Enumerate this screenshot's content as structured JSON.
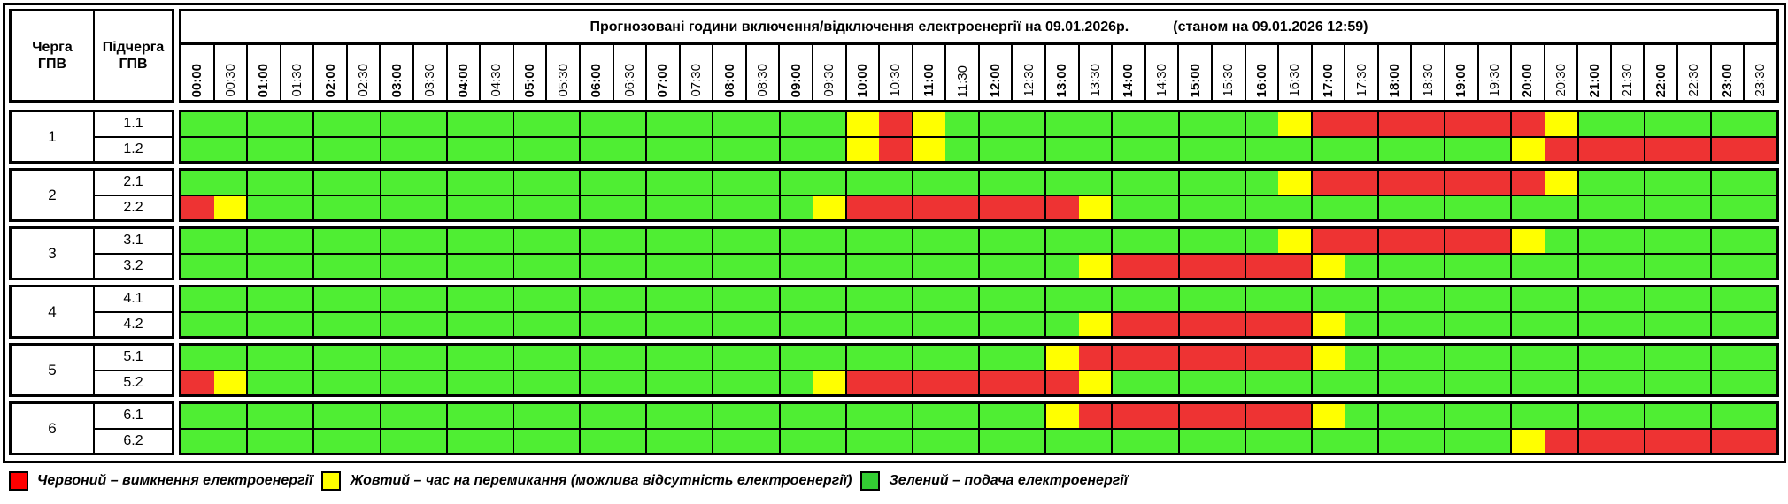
{
  "header": {
    "queue_label": "Черга\nГПВ",
    "subqueue_label": "Підчерга\nГПВ",
    "title": "Прогнозовані години включення/відключення електроенергії на 09.01.2026р.",
    "status": "(станом на 09.01.2026 12:59)"
  },
  "times": [
    "00:00",
    "00:30",
    "01:00",
    "01:30",
    "02:00",
    "02:30",
    "03:00",
    "03:30",
    "04:00",
    "04:30",
    "05:00",
    "05:30",
    "06:00",
    "06:30",
    "07:00",
    "07:30",
    "08:00",
    "08:30",
    "09:00",
    "09:30",
    "10:00",
    "10:30",
    "11:00",
    "11:30",
    "12:00",
    "12:30",
    "13:00",
    "13:30",
    "14:00",
    "14:30",
    "15:00",
    "15:30",
    "16:00",
    "16:30",
    "17:00",
    "17:30",
    "18:00",
    "18:30",
    "19:00",
    "19:30",
    "20:00",
    "20:30",
    "21:00",
    "21:30",
    "22:00",
    "22:30",
    "23:00",
    "23:30"
  ],
  "colors": {
    "R": "#ee3333",
    "Y": "#ffff00",
    "G": "#4fee33",
    "legend_green": "#33cc33",
    "legend_red": "#ff0000"
  },
  "groups": [
    {
      "queue": "1",
      "subs": [
        {
          "id": "1.1",
          "slots": "GG GG GG GG GG GG GG GG GG GG YR YG GG GG GG GG GY RR RR RR RY GG GG GG"
        },
        {
          "id": "1.2",
          "slots": "GG GG GG GG GG GG GG GG GG GG YR YG GG GG GG GG GG GG GG GG YR RR RR RR"
        }
      ]
    },
    {
      "queue": "2",
      "subs": [
        {
          "id": "2.1",
          "slots": "GG GG GG GG GG GG GG GG GG GG GG GG GG GG GG GG GY RR RR RR RY GG GG GG"
        },
        {
          "id": "2.2",
          "slots": "RY GG GG GG GG GG GG GG GG GY RR RR RR RY GG GG GG GG GG GG GG GG GG GG"
        }
      ]
    },
    {
      "queue": "3",
      "subs": [
        {
          "id": "3.1",
          "slots": "GG GG GG GG GG GG GG GG GG GG GG GG GG GG GG GG GY RR RR RR YG GG GG GG"
        },
        {
          "id": "3.2",
          "slots": "GG GG GG GG GG GG GG GG GG GG GG GG GG GY RR RR RR YG GG GG GG GG GG GG"
        }
      ]
    },
    {
      "queue": "4",
      "subs": [
        {
          "id": "4.1",
          "slots": "GG GG GG GG GG GG GG GG GG GG GG GG GG GG GG GG GG GG GG GG GG GG GG GG"
        },
        {
          "id": "4.2",
          "slots": "GG GG GG GG GG GG GG GG GG GG GG GG GG GY RR RR RR YG GG GG GG GG GG GG"
        }
      ]
    },
    {
      "queue": "5",
      "subs": [
        {
          "id": "5.1",
          "slots": "GG GG GG GG GG GG GG GG GG GG GG GG GG YR RR RR RR YG GG GG GG GG GG GG"
        },
        {
          "id": "5.2",
          "slots": "RY GG GG GG GG GG GG GG GG GY RR RR RR RY GG GG GG GG GG GG GG GG GG GG"
        }
      ]
    },
    {
      "queue": "6",
      "subs": [
        {
          "id": "6.1",
          "slots": "GG GG GG GG GG GG GG GG GG GG GG GG GG YR RR RR RR YG GG GG GG GG GG GG"
        },
        {
          "id": "6.2",
          "slots": "GG GG GG GG GG GG GG GG GG GG GG GG GG GG GG GG GG GG GG GG YR RR RR RR"
        }
      ]
    }
  ],
  "legend": {
    "red": "Червоний – вимкнення електроенергії",
    "yellow": "Жовтий – час на перемикання (можлива відсутність електроенергії)",
    "green": "Зелений – подача електроенергії"
  }
}
